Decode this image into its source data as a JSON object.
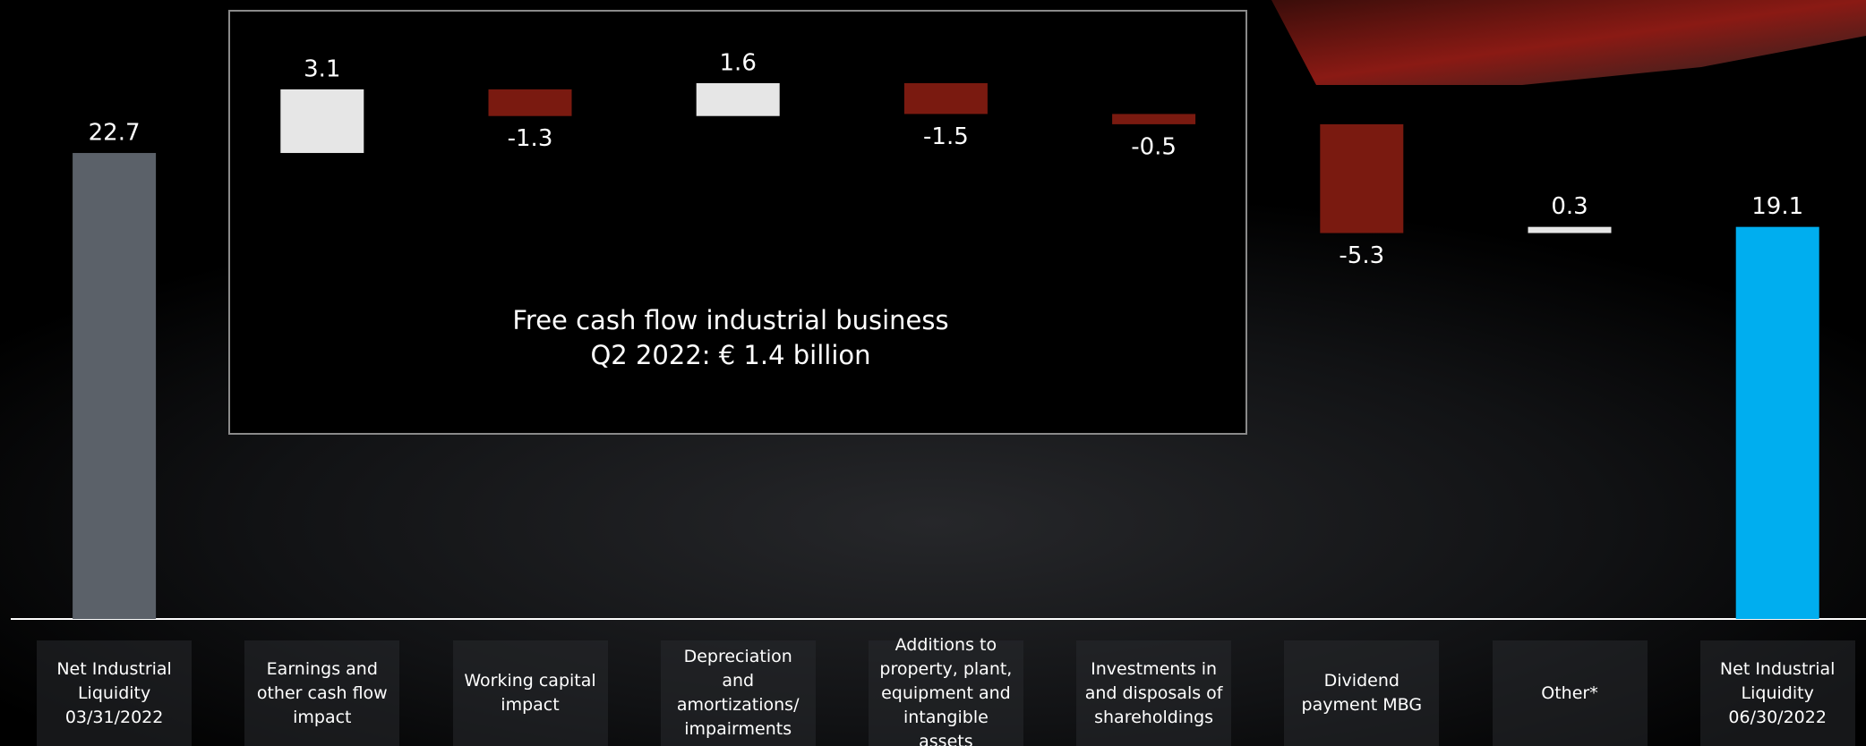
{
  "chart_data": {
    "type": "waterfall",
    "categories": [
      "Net Industrial Liquidity 03/31/2022",
      "Earnings and other cash flow impact",
      "Working capital impact",
      "Depreciation and amortizations/ impairments",
      "Additions to property, plant, equipment and intangible assets",
      "Investments in and disposals of shareholdings",
      "Dividend payment MBG",
      "Other*",
      "Net Industrial Liquidity 06/30/2022"
    ],
    "values": [
      22.7,
      3.1,
      -1.3,
      1.6,
      -1.5,
      -0.5,
      -5.3,
      0.3,
      19.1
    ],
    "is_total": [
      true,
      false,
      false,
      false,
      false,
      false,
      false,
      false,
      true
    ],
    "colors": [
      "#5b6169",
      "#e6e6e6",
      "#7a1a10",
      "#e6e6e6",
      "#7a1a10",
      "#7a1a10",
      "#7a1a10",
      "#e6e6e6",
      "#00aeef"
    ],
    "annotations": [
      "Free cash flow industrial business",
      "Q2 2022: € 1.4 billion"
    ]
  }
}
